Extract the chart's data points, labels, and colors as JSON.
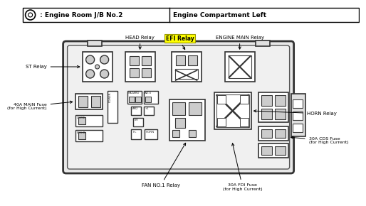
{
  "title_left": " : Engine Room J/B No.2",
  "title_right": "Engine Compartment Left",
  "bg_color": "#ffffff",
  "efi_highlight": "#ffff00",
  "labels": {
    "head_relay": "HEAD Relay",
    "efi_relay": "EFI Relay",
    "engine_main_relay": "ENGINE MAIN Relay",
    "st_relay": "ST Relay",
    "horn_relay": "HORN Relay",
    "40a_fuse": "40A MAIN Fuse\n(for High Current)",
    "30a_cds": "30A CDS Fuse\n(for High Current)",
    "fan_relay": "FAN NO.1 Relay",
    "30a_fdi": "30A FDI Fuse\n(for High Current)"
  }
}
